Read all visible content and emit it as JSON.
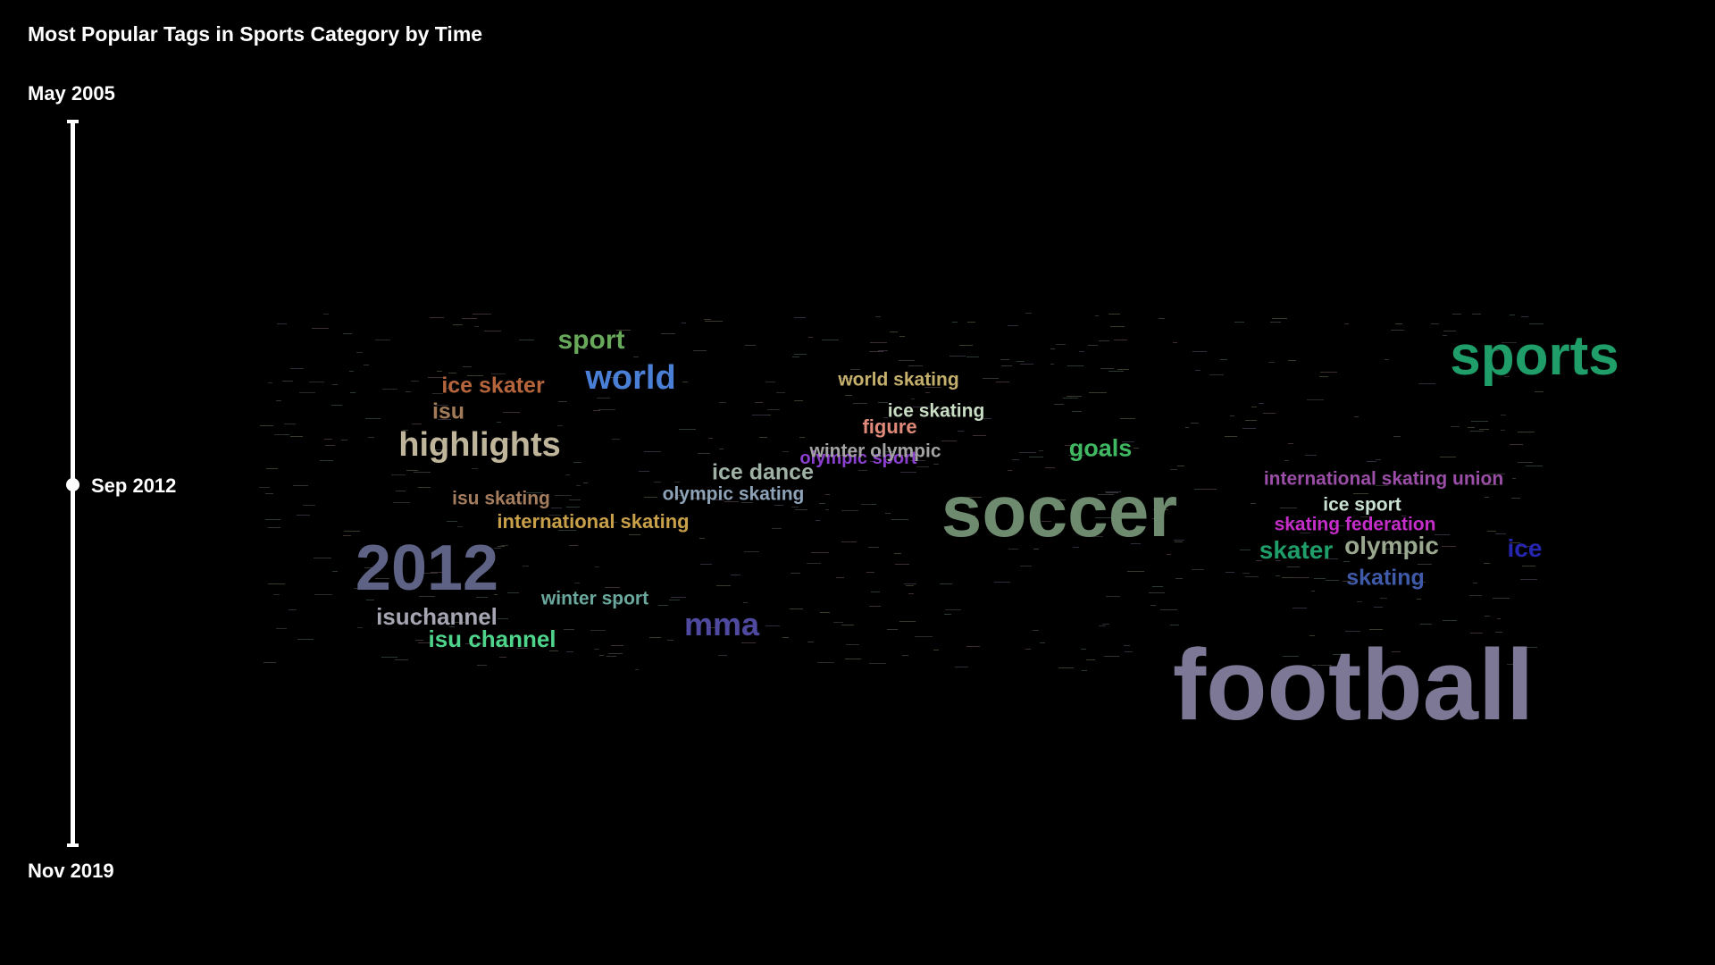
{
  "title": "Most Popular Tags in Sports Category by Time",
  "timeline": {
    "start_label": "May 2005",
    "end_label": "Nov 2019",
    "current_label": "Sep 2012"
  },
  "tags": [
    {
      "text": "sports",
      "color": "#1f9e6a"
    },
    {
      "text": "football",
      "color": "#7d7895"
    },
    {
      "text": "soccer",
      "color": "#6e8a6f"
    },
    {
      "text": "2012",
      "color": "#5e6285"
    },
    {
      "text": "highlights",
      "color": "#bfb59b"
    },
    {
      "text": "world",
      "color": "#4a7fd6"
    },
    {
      "text": "sport",
      "color": "#68a85b"
    },
    {
      "text": "ice skater",
      "color": "#b5653c"
    },
    {
      "text": "isu",
      "color": "#a17b59"
    },
    {
      "text": "mma",
      "color": "#4f4aa0"
    },
    {
      "text": "isuchannel",
      "color": "#a6a6b3"
    },
    {
      "text": "isu channel",
      "color": "#4fd48b"
    },
    {
      "text": "winter sport",
      "color": "#6aa79c"
    },
    {
      "text": "isu skating",
      "color": "#a47c5e"
    },
    {
      "text": "international skating",
      "color": "#c9a04a"
    },
    {
      "text": "olympic skating",
      "color": "#8ea3b8"
    },
    {
      "text": "ice dance",
      "color": "#9fb0a4"
    },
    {
      "text": "olympic sport",
      "color": "#8b3fcf"
    },
    {
      "text": "winter olympic",
      "color": "#a3a3a3"
    },
    {
      "text": "figure",
      "color": "#e08a7a"
    },
    {
      "text": "ice skating",
      "color": "#c9dcc4"
    },
    {
      "text": "world skating",
      "color": "#c4b06c"
    },
    {
      "text": "goals",
      "color": "#3fb861"
    },
    {
      "text": "international skating union",
      "color": "#9a4ea6"
    },
    {
      "text": "ice sport",
      "color": "#c9e1d2"
    },
    {
      "text": "skating federation",
      "color": "#c52dc9"
    },
    {
      "text": "skater",
      "color": "#1f9e6a"
    },
    {
      "text": "olympic",
      "color": "#9aa88f"
    },
    {
      "text": "ice",
      "color": "#2525b0"
    },
    {
      "text": "skating",
      "color": "#3f5aa8"
    }
  ]
}
